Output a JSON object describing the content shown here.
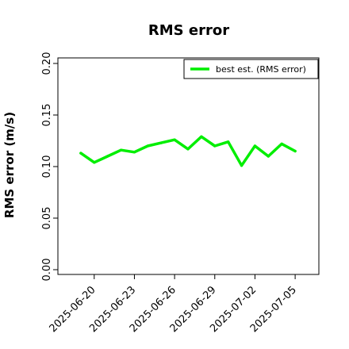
{
  "chart_data": {
    "type": "line",
    "title": "RMS error",
    "xlabel": "",
    "ylabel": "RMS error (m/s)",
    "ylim": [
      0.0,
      0.21
    ],
    "yticks": [
      "0.00",
      "0.05",
      "0.10",
      "0.15",
      "0.20"
    ],
    "xlim": [
      "2025-06-18",
      "2025-07-06"
    ],
    "xticks": [
      {
        "label": "2025-06-20",
        "color": "#000000"
      },
      {
        "label": "2025-06-23",
        "color": "#000000"
      },
      {
        "label": "2025-06-26",
        "color": "#228B22"
      },
      {
        "label": "2025-06-29",
        "color": "#000000"
      },
      {
        "label": "2025-07-02",
        "color": "#000000"
      },
      {
        "label": "2025-07-05",
        "color": "#000000"
      }
    ],
    "grid": false,
    "legend_position": "top-right",
    "series": [
      {
        "name": "best est. (RMS error)",
        "color": "#00ee00",
        "x": [
          "2025-06-19",
          "2025-06-20",
          "2025-06-21",
          "2025-06-22",
          "2025-06-23",
          "2025-06-24",
          "2025-06-25",
          "2025-06-26",
          "2025-06-27",
          "2025-06-28",
          "2025-06-29",
          "2025-06-30",
          "2025-07-01",
          "2025-07-02",
          "2025-07-03",
          "2025-07-04",
          "2025-07-05"
        ],
        "y": [
          0.113,
          0.104,
          0.11,
          0.116,
          0.114,
          0.12,
          0.123,
          0.126,
          0.117,
          0.129,
          0.12,
          0.124,
          0.101,
          0.12,
          0.11,
          0.122,
          0.115
        ]
      }
    ]
  }
}
